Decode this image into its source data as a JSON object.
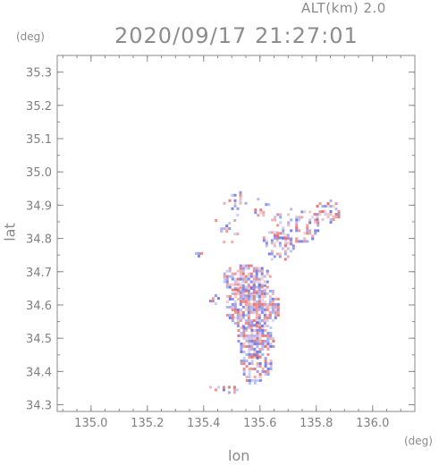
{
  "header": {
    "alt_label": "ALT(km)  2.0",
    "timestamp": "2020/09/17 21:27:01"
  },
  "chart_data": {
    "type": "heatmap",
    "title": "2020/09/17 21:27:01",
    "xlabel": "lon",
    "ylabel": "lat",
    "x_unit": "(deg)",
    "y_unit": "(deg)",
    "xlim": [
      134.88,
      136.15
    ],
    "ylim": [
      34.28,
      35.35
    ],
    "x_ticks": [
      135.0,
      135.2,
      135.4,
      135.6,
      135.8,
      136.0
    ],
    "x_tick_labels": [
      "135.0",
      "135.2",
      "135.4",
      "135.6",
      "135.8",
      "136.0"
    ],
    "y_ticks": [
      34.3,
      34.4,
      34.5,
      34.6,
      34.7,
      34.8,
      34.9,
      35.0,
      35.1,
      35.2,
      35.3
    ],
    "y_tick_labels": [
      "34.3",
      "34.4",
      "34.5",
      "34.6",
      "34.7",
      "34.8",
      "34.9",
      "35.0",
      "35.1",
      "35.2",
      "35.3"
    ],
    "grid": false,
    "colors": {
      "positive": "#e05a5a",
      "negative": "#5a64e0",
      "axis": "#808080"
    },
    "regions": [
      {
        "lon": 135.5,
        "lat": 34.92,
        "dlon": 0.05,
        "dlat": 0.03,
        "density": 0.35
      },
      {
        "lon": 135.48,
        "lat": 34.84,
        "dlon": 0.05,
        "dlat": 0.05,
        "density": 0.25
      },
      {
        "lon": 135.6,
        "lat": 34.9,
        "dlon": 0.03,
        "dlat": 0.03,
        "density": 0.3
      },
      {
        "lon": 135.83,
        "lat": 34.885,
        "dlon": 0.05,
        "dlat": 0.04,
        "density": 0.6
      },
      {
        "lon": 135.72,
        "lat": 34.84,
        "dlon": 0.09,
        "dlat": 0.06,
        "density": 0.45
      },
      {
        "lon": 135.66,
        "lat": 34.78,
        "dlon": 0.06,
        "dlat": 0.05,
        "density": 0.5
      },
      {
        "lon": 135.37,
        "lat": 34.76,
        "dlon": 0.02,
        "dlat": 0.015,
        "density": 0.5
      },
      {
        "lon": 135.55,
        "lat": 34.68,
        "dlon": 0.09,
        "dlat": 0.05,
        "density": 0.8
      },
      {
        "lon": 135.57,
        "lat": 34.6,
        "dlon": 0.1,
        "dlat": 0.07,
        "density": 0.9
      },
      {
        "lon": 135.58,
        "lat": 34.5,
        "dlon": 0.07,
        "dlat": 0.06,
        "density": 0.85
      },
      {
        "lon": 135.58,
        "lat": 34.42,
        "dlon": 0.06,
        "dlat": 0.04,
        "density": 0.7
      },
      {
        "lon": 135.47,
        "lat": 34.35,
        "dlon": 0.06,
        "dlat": 0.015,
        "density": 0.5
      },
      {
        "lon": 135.57,
        "lat": 34.375,
        "dlon": 0.03,
        "dlat": 0.01,
        "density": 0.8
      },
      {
        "lon": 135.43,
        "lat": 34.62,
        "dlon": 0.02,
        "dlat": 0.02,
        "density": 0.4
      }
    ]
  }
}
